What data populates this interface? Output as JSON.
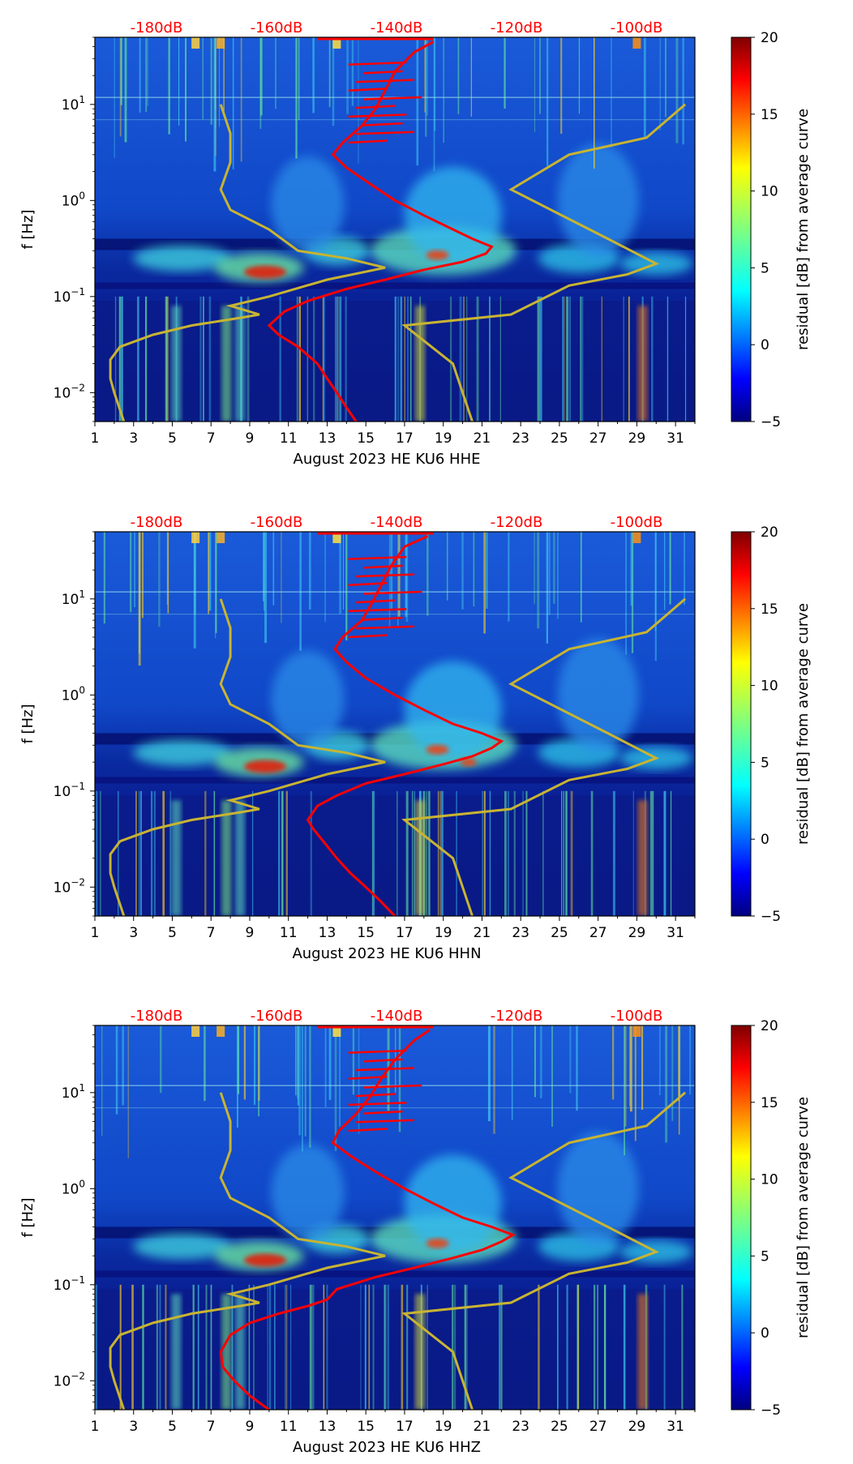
{
  "chart_data": [
    {
      "type": "heatmap",
      "title": "August 2023 HE KU6  HHE",
      "xlabel": "August 2023 HE KU6  HHE",
      "ylabel": "f [Hz]",
      "x_ticks": [
        "1",
        "3",
        "5",
        "7",
        "9",
        "11",
        "13",
        "15",
        "17",
        "19",
        "21",
        "23",
        "25",
        "27",
        "29",
        "31"
      ],
      "y_ticks": [
        "10^1",
        "10^0",
        "10^-1",
        "10^-2"
      ],
      "xlim": [
        1,
        32
      ],
      "ylim_hz": [
        0.005,
        50
      ],
      "db_ticks": [
        "-180dB",
        "-160dB",
        "-140dB",
        "-120dB",
        "-100dB"
      ],
      "colorbar": {
        "label": "residual [dB] from average curve",
        "range": [
          -5,
          20
        ],
        "ticks": [
          "20",
          "15",
          "10",
          "5",
          "0",
          "−5"
        ]
      },
      "red_curve": [
        [
          0.005,
          14.5
        ],
        [
          0.007,
          14.0
        ],
        [
          0.01,
          13.5
        ],
        [
          0.014,
          13.0
        ],
        [
          0.02,
          12.5
        ],
        [
          0.03,
          11.5
        ],
        [
          0.04,
          10.5
        ],
        [
          0.05,
          10.0
        ],
        [
          0.07,
          10.8
        ],
        [
          0.09,
          12.0
        ],
        [
          0.12,
          14.0
        ],
        [
          0.15,
          16.0
        ],
        [
          0.19,
          18.0
        ],
        [
          0.23,
          20.0
        ],
        [
          0.28,
          21.2
        ],
        [
          0.33,
          21.5
        ],
        [
          0.4,
          20.5
        ],
        [
          0.5,
          19.5
        ],
        [
          0.7,
          18.0
        ],
        [
          1.0,
          16.5
        ],
        [
          1.5,
          15.2
        ],
        [
          2.2,
          14.0
        ],
        [
          3.0,
          13.3
        ],
        [
          4.0,
          13.8
        ],
        [
          6.0,
          14.8
        ],
        [
          9.0,
          15.5
        ],
        [
          14.0,
          16.0
        ],
        [
          22.0,
          16.5
        ],
        [
          35.0,
          17.5
        ],
        [
          45.0,
          18.5
        ]
      ],
      "olive_curve_left": [
        [
          0.005,
          2.5
        ],
        [
          0.01,
          2.0
        ],
        [
          0.014,
          1.8
        ],
        [
          0.022,
          1.8
        ],
        [
          0.03,
          2.3
        ],
        [
          0.04,
          4.0
        ],
        [
          0.05,
          6.0
        ],
        [
          0.06,
          8.5
        ],
        [
          0.065,
          9.5
        ],
        [
          0.08,
          8.0
        ],
        [
          0.1,
          10.0
        ],
        [
          0.15,
          13.0
        ],
        [
          0.2,
          16.0
        ],
        [
          0.25,
          14.0
        ],
        [
          0.3,
          11.5
        ],
        [
          0.5,
          10.0
        ],
        [
          0.8,
          8.0
        ],
        [
          1.3,
          7.5
        ],
        [
          2.5,
          8.0
        ],
        [
          5.0,
          8.0
        ],
        [
          10.0,
          7.5
        ]
      ],
      "olive_curve_right": [
        [
          0.005,
          20.5
        ],
        [
          0.02,
          19.5
        ],
        [
          0.05,
          17.0
        ],
        [
          0.065,
          22.5
        ],
        [
          0.13,
          25.5
        ],
        [
          0.17,
          28.5
        ],
        [
          0.22,
          30.0
        ],
        [
          0.4,
          27.5
        ],
        [
          1.3,
          22.5
        ],
        [
          3.0,
          25.5
        ],
        [
          4.5,
          29.5
        ],
        [
          10.0,
          31.5
        ]
      ]
    },
    {
      "type": "heatmap",
      "title": "August 2023 HE KU6  HHN",
      "xlabel": "August 2023 HE KU6  HHN",
      "ylabel": "f [Hz]",
      "x_ticks": [
        "1",
        "3",
        "5",
        "7",
        "9",
        "11",
        "13",
        "15",
        "17",
        "19",
        "21",
        "23",
        "25",
        "27",
        "29",
        "31"
      ],
      "y_ticks": [
        "10^1",
        "10^0",
        "10^-1",
        "10^-2"
      ],
      "xlim": [
        1,
        32
      ],
      "ylim_hz": [
        0.005,
        50
      ],
      "db_ticks": [
        "-180dB",
        "-160dB",
        "-140dB",
        "-120dB",
        "-100dB"
      ],
      "colorbar": {
        "label": "residual [dB] from average curve",
        "range": [
          -5,
          20
        ],
        "ticks": [
          "20",
          "15",
          "10",
          "5",
          "0",
          "−5"
        ]
      },
      "red_curve": [
        [
          0.005,
          16.5
        ],
        [
          0.007,
          15.8
        ],
        [
          0.01,
          15.0
        ],
        [
          0.014,
          14.2
        ],
        [
          0.02,
          13.5
        ],
        [
          0.03,
          12.8
        ],
        [
          0.04,
          12.3
        ],
        [
          0.05,
          12.0
        ],
        [
          0.07,
          12.5
        ],
        [
          0.09,
          13.5
        ],
        [
          0.12,
          15.0
        ],
        [
          0.15,
          17.0
        ],
        [
          0.19,
          19.0
        ],
        [
          0.23,
          20.5
        ],
        [
          0.28,
          21.5
        ],
        [
          0.33,
          22.0
        ],
        [
          0.4,
          21.0
        ],
        [
          0.5,
          19.5
        ],
        [
          0.7,
          18.0
        ],
        [
          1.0,
          16.5
        ],
        [
          1.5,
          15.0
        ],
        [
          2.2,
          14.0
        ],
        [
          3.0,
          13.4
        ],
        [
          4.0,
          13.8
        ],
        [
          6.0,
          14.8
        ],
        [
          9.0,
          15.3
        ],
        [
          14.0,
          15.8
        ],
        [
          22.0,
          16.3
        ],
        [
          35.0,
          17.0
        ],
        [
          45.0,
          18.2
        ]
      ],
      "olive_curve_left": [
        [
          0.005,
          2.5
        ],
        [
          0.01,
          2.0
        ],
        [
          0.014,
          1.8
        ],
        [
          0.022,
          1.8
        ],
        [
          0.03,
          2.3
        ],
        [
          0.04,
          4.0
        ],
        [
          0.05,
          6.0
        ],
        [
          0.06,
          8.5
        ],
        [
          0.065,
          9.5
        ],
        [
          0.08,
          8.0
        ],
        [
          0.1,
          10.0
        ],
        [
          0.15,
          13.0
        ],
        [
          0.2,
          16.0
        ],
        [
          0.25,
          14.0
        ],
        [
          0.3,
          11.5
        ],
        [
          0.5,
          10.0
        ],
        [
          0.8,
          8.0
        ],
        [
          1.3,
          7.5
        ],
        [
          2.5,
          8.0
        ],
        [
          5.0,
          8.0
        ],
        [
          10.0,
          7.5
        ]
      ],
      "olive_curve_right": [
        [
          0.005,
          20.5
        ],
        [
          0.02,
          19.5
        ],
        [
          0.05,
          17.0
        ],
        [
          0.065,
          22.5
        ],
        [
          0.13,
          25.5
        ],
        [
          0.17,
          28.5
        ],
        [
          0.22,
          30.0
        ],
        [
          0.4,
          27.5
        ],
        [
          1.3,
          22.5
        ],
        [
          3.0,
          25.5
        ],
        [
          4.5,
          29.5
        ],
        [
          10.0,
          31.5
        ]
      ]
    },
    {
      "type": "heatmap",
      "title": "August 2023 HE KU6  HHZ",
      "xlabel": "August 2023 HE KU6  HHZ",
      "ylabel": "f [Hz]",
      "x_ticks": [
        "1",
        "3",
        "5",
        "7",
        "9",
        "11",
        "13",
        "15",
        "17",
        "19",
        "21",
        "23",
        "25",
        "27",
        "29",
        "31"
      ],
      "y_ticks": [
        "10^1",
        "10^0",
        "10^-1",
        "10^-2"
      ],
      "xlim": [
        1,
        32
      ],
      "ylim_hz": [
        0.005,
        50
      ],
      "db_ticks": [
        "-180dB",
        "-160dB",
        "-140dB",
        "-120dB",
        "-100dB"
      ],
      "colorbar": {
        "label": "residual [dB] from average curve",
        "range": [
          -5,
          20
        ],
        "ticks": [
          "20",
          "15",
          "10",
          "5",
          "0",
          "−5"
        ]
      },
      "red_curve": [
        [
          0.005,
          10.0
        ],
        [
          0.007,
          9.0
        ],
        [
          0.01,
          8.2
        ],
        [
          0.014,
          7.6
        ],
        [
          0.02,
          7.5
        ],
        [
          0.03,
          8.0
        ],
        [
          0.04,
          9.0
        ],
        [
          0.05,
          10.5
        ],
        [
          0.06,
          12.0
        ],
        [
          0.07,
          13.0
        ],
        [
          0.09,
          13.5
        ],
        [
          0.12,
          15.5
        ],
        [
          0.15,
          17.5
        ],
        [
          0.19,
          19.5
        ],
        [
          0.23,
          21.0
        ],
        [
          0.28,
          22.0
        ],
        [
          0.33,
          22.6
        ],
        [
          0.4,
          21.5
        ],
        [
          0.5,
          20.0
        ],
        [
          0.7,
          18.5
        ],
        [
          1.0,
          17.0
        ],
        [
          1.5,
          15.5
        ],
        [
          2.2,
          14.2
        ],
        [
          3.0,
          13.3
        ],
        [
          4.0,
          13.6
        ],
        [
          6.0,
          14.5
        ],
        [
          9.0,
          15.2
        ],
        [
          14.0,
          15.8
        ],
        [
          22.0,
          16.5
        ],
        [
          35.0,
          17.5
        ],
        [
          45.0,
          18.3
        ]
      ],
      "olive_curve_left": [
        [
          0.005,
          2.5
        ],
        [
          0.01,
          2.0
        ],
        [
          0.014,
          1.8
        ],
        [
          0.022,
          1.8
        ],
        [
          0.03,
          2.3
        ],
        [
          0.04,
          4.0
        ],
        [
          0.05,
          6.0
        ],
        [
          0.06,
          8.5
        ],
        [
          0.065,
          9.5
        ],
        [
          0.08,
          8.0
        ],
        [
          0.1,
          10.0
        ],
        [
          0.15,
          13.0
        ],
        [
          0.2,
          16.0
        ],
        [
          0.25,
          14.0
        ],
        [
          0.3,
          11.5
        ],
        [
          0.5,
          10.0
        ],
        [
          0.8,
          8.0
        ],
        [
          1.3,
          7.5
        ],
        [
          2.5,
          8.0
        ],
        [
          5.0,
          8.0
        ],
        [
          10.0,
          7.5
        ]
      ],
      "olive_curve_right": [
        [
          0.005,
          20.5
        ],
        [
          0.02,
          19.5
        ],
        [
          0.05,
          17.0
        ],
        [
          0.065,
          22.5
        ],
        [
          0.13,
          25.5
        ],
        [
          0.17,
          28.5
        ],
        [
          0.22,
          30.0
        ],
        [
          0.4,
          27.5
        ],
        [
          1.3,
          22.5
        ],
        [
          3.0,
          25.5
        ],
        [
          4.5,
          29.5
        ],
        [
          10.0,
          31.5
        ]
      ]
    }
  ],
  "colors": {
    "red_curve": "#ff0000",
    "olive_curve": "#c8b432",
    "db_labels": "#ff0000",
    "background": "#000080"
  }
}
